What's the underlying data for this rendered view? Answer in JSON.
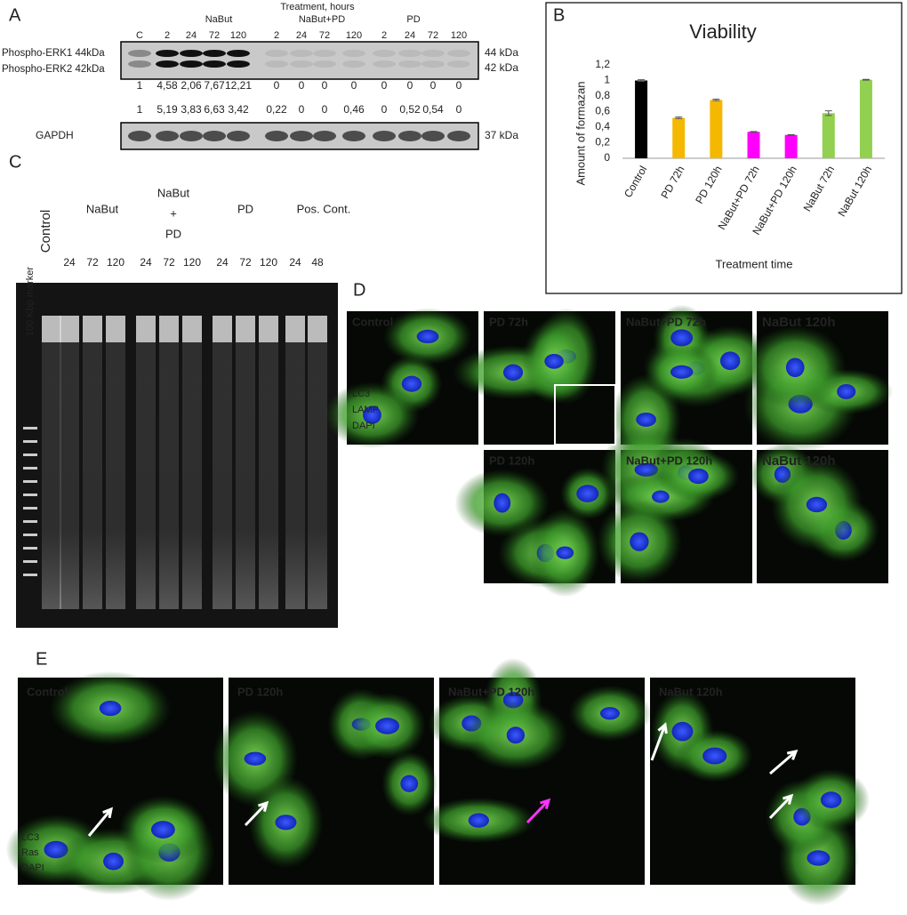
{
  "panel_labels": [
    "A",
    "B",
    "C",
    "D",
    "E"
  ],
  "western_blot": {
    "header": "Treatment, hours",
    "groups": [
      "NaBut",
      "NaBut+PD",
      "PD"
    ],
    "lanes": [
      "C",
      "2",
      "24",
      "72",
      "120",
      "2",
      "24",
      "72",
      "120",
      "2",
      "24",
      "72",
      "120"
    ],
    "bands_left": [
      "Phospho-ERK1 44kDa",
      "Phospho-ERK2 42kDa"
    ],
    "bands_right": [
      "44 kDa",
      "42 kDa"
    ],
    "erk_quantification": [
      "1",
      "4,58",
      "2,06",
      "7,67",
      "12,21",
      "0",
      "0",
      "0",
      "0",
      "0",
      "0",
      "0",
      "0"
    ],
    "gapdh_quantification": [
      "1",
      "5,19",
      "3,83",
      "6,63",
      "3,42",
      "0,22",
      "0",
      "0",
      "0,46",
      "0",
      "0,52",
      "0,54",
      "0"
    ],
    "loading_control": "GAPDH",
    "loading_control_size": "37 kDa"
  },
  "chart_data": {
    "type": "bar",
    "title": "Viability",
    "x_label": "Treatment time",
    "y_label": "Amount of formazan",
    "categories": [
      "Control",
      "PD 72h",
      "PD 120h",
      "NaBut+PD 72h",
      "NaBut+PD 120h",
      "NaBut 72h",
      "NaBut 120h"
    ],
    "values": [
      1.0,
      0.52,
      0.75,
      0.34,
      0.3,
      0.58,
      1.01
    ],
    "errors": [
      0.01,
      0.01,
      0.01,
      0.005,
      0.005,
      0.03,
      0.005
    ],
    "colors": [
      "#000000",
      "#f5b800",
      "#f5b800",
      "#ff00ff",
      "#ff00ff",
      "#92d050",
      "#92d050"
    ],
    "ylim": [
      0,
      1.2
    ],
    "yticks": [
      0,
      {
        "value": 0.2,
        "label": "0,2"
      },
      {
        "value": 0.4,
        "label": "0,4"
      },
      {
        "value": 0.6,
        "label": "0,6"
      },
      {
        "value": 0.8,
        "label": "0,8"
      },
      1,
      {
        "value": 1.2,
        "label": "1,2"
      }
    ],
    "grid": false
  },
  "gel": {
    "marker": "100 Kbp marker",
    "control": "Control",
    "groups": [
      [
        "NaBut"
      ],
      [
        "NaBut",
        "+",
        "PD"
      ],
      [
        "PD"
      ],
      [
        "Pos. Cont."
      ]
    ],
    "lanes": [
      "24",
      "72",
      "120",
      "24",
      "72",
      "120",
      "24",
      "72",
      "120",
      "24",
      "48"
    ]
  },
  "microscopy_d": {
    "legend": [
      "LC3",
      "LAMP",
      "DAPI"
    ],
    "panels": [
      "Control",
      "PD 72h",
      "NaBut+PD  72h",
      "NaBut 120h",
      "PD 120h",
      "NaBut+PD  120h",
      "NaBut 120h"
    ]
  },
  "microscopy_e": {
    "legend": [
      "LC3",
      "Ras",
      "DAPI"
    ],
    "panels": [
      "Control",
      "PD  120h",
      "NaBut+PD  120h",
      "NaBut  120h"
    ]
  }
}
